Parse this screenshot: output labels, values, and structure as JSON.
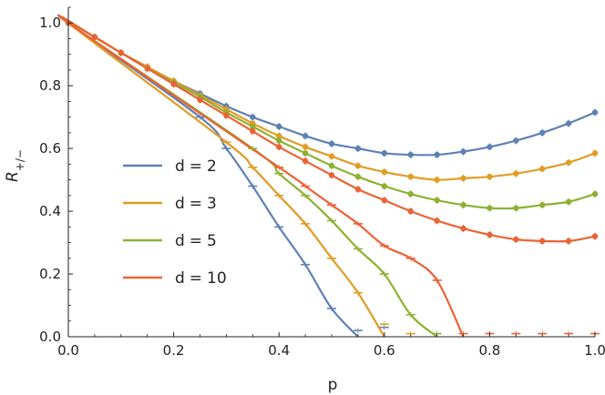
{
  "chart_data": {
    "type": "line",
    "title": "",
    "xlabel": "p",
    "ylabel": "R_{+/-}",
    "xlim": [
      0.0,
      1.0
    ],
    "ylim": [
      0.0,
      1.05
    ],
    "x_ticks": [
      "0.0",
      "0.2",
      "0.4",
      "0.6",
      "0.8",
      "1.0"
    ],
    "y_ticks": [
      "0.0",
      "0.2",
      "0.4",
      "0.6",
      "0.8",
      "1.0"
    ],
    "legend_position": "center-left",
    "series": [
      {
        "name": "d = 2",
        "legend_d": "d",
        "legend_eq": "=",
        "legend_value": "2",
        "color": "#5e81b5",
        "upper_markers": {
          "x": [
            0.0,
            0.05,
            0.1,
            0.15,
            0.2,
            0.25,
            0.3,
            0.35,
            0.4,
            0.45,
            0.5,
            0.55,
            0.6,
            0.65,
            0.7,
            0.75,
            0.8,
            0.85,
            0.9,
            0.95,
            1.0
          ],
          "y": [
            1.0,
            0.955,
            0.905,
            0.86,
            0.815,
            0.775,
            0.735,
            0.7,
            0.67,
            0.64,
            0.615,
            0.6,
            0.585,
            0.58,
            0.58,
            0.59,
            0.605,
            0.625,
            0.65,
            0.68,
            0.715
          ]
        },
        "lower_markers": {
          "x": [
            0.25,
            0.3,
            0.35,
            0.4,
            0.45,
            0.5,
            0.55,
            0.6
          ],
          "y": [
            0.7,
            0.6,
            0.48,
            0.35,
            0.23,
            0.09,
            0.02,
            0.03
          ]
        }
      },
      {
        "name": "d = 3",
        "legend_d": "d",
        "legend_eq": "=",
        "legend_value": "3",
        "color": "#e19c24",
        "upper_markers": {
          "x": [
            0.0,
            0.05,
            0.1,
            0.15,
            0.2,
            0.25,
            0.3,
            0.35,
            0.4,
            0.45,
            0.5,
            0.55,
            0.6,
            0.65,
            0.7,
            0.75,
            0.8,
            0.85,
            0.9,
            0.95,
            1.0
          ],
          "y": [
            1.0,
            0.955,
            0.905,
            0.86,
            0.815,
            0.77,
            0.725,
            0.68,
            0.64,
            0.605,
            0.575,
            0.545,
            0.525,
            0.51,
            0.5,
            0.505,
            0.51,
            0.52,
            0.535,
            0.555,
            0.585
          ]
        },
        "lower_markers": {
          "x": [
            0.3,
            0.35,
            0.4,
            0.45,
            0.5,
            0.55,
            0.6,
            0.65
          ],
          "y": [
            0.62,
            0.54,
            0.45,
            0.36,
            0.25,
            0.14,
            0.04,
            0.01
          ]
        }
      },
      {
        "name": "d = 5",
        "legend_d": "d",
        "legend_eq": "=",
        "legend_value": "5",
        "color": "#8fb032",
        "upper_markers": {
          "x": [
            0.0,
            0.05,
            0.1,
            0.15,
            0.2,
            0.25,
            0.3,
            0.35,
            0.4,
            0.45,
            0.5,
            0.55,
            0.6,
            0.65,
            0.7,
            0.75,
            0.8,
            0.85,
            0.9,
            0.95,
            1.0
          ],
          "y": [
            1.0,
            0.955,
            0.905,
            0.855,
            0.81,
            0.765,
            0.715,
            0.67,
            0.625,
            0.585,
            0.545,
            0.51,
            0.48,
            0.455,
            0.435,
            0.42,
            0.41,
            0.41,
            0.42,
            0.43,
            0.455
          ]
        },
        "lower_markers": {
          "x": [
            0.35,
            0.4,
            0.45,
            0.5,
            0.55,
            0.6,
            0.65,
            0.7
          ],
          "y": [
            0.6,
            0.52,
            0.45,
            0.37,
            0.28,
            0.2,
            0.07,
            0.01
          ]
        }
      },
      {
        "name": "d = 10",
        "legend_d": "d",
        "legend_eq": "=",
        "legend_value": "10",
        "color": "#eb6235",
        "upper_markers": {
          "x": [
            0.0,
            0.05,
            0.1,
            0.15,
            0.2,
            0.25,
            0.3,
            0.35,
            0.4,
            0.45,
            0.5,
            0.55,
            0.6,
            0.65,
            0.7,
            0.75,
            0.8,
            0.85,
            0.9,
            0.95,
            1.0
          ],
          "y": [
            1.0,
            0.955,
            0.905,
            0.855,
            0.805,
            0.755,
            0.705,
            0.655,
            0.605,
            0.56,
            0.515,
            0.47,
            0.435,
            0.4,
            0.37,
            0.345,
            0.325,
            0.31,
            0.305,
            0.305,
            0.32
          ]
        },
        "lower_markers": {
          "x": [
            0.4,
            0.45,
            0.5,
            0.55,
            0.6,
            0.65,
            0.7,
            0.75,
            0.8,
            0.85,
            0.9,
            0.95,
            1.0
          ],
          "y": [
            0.54,
            0.48,
            0.42,
            0.36,
            0.29,
            0.25,
            0.18,
            0.01,
            0.01,
            0.01,
            0.01,
            0.01,
            0.01
          ]
        }
      }
    ]
  },
  "colors": {
    "axis": "#222222",
    "background": "#ffffff"
  }
}
